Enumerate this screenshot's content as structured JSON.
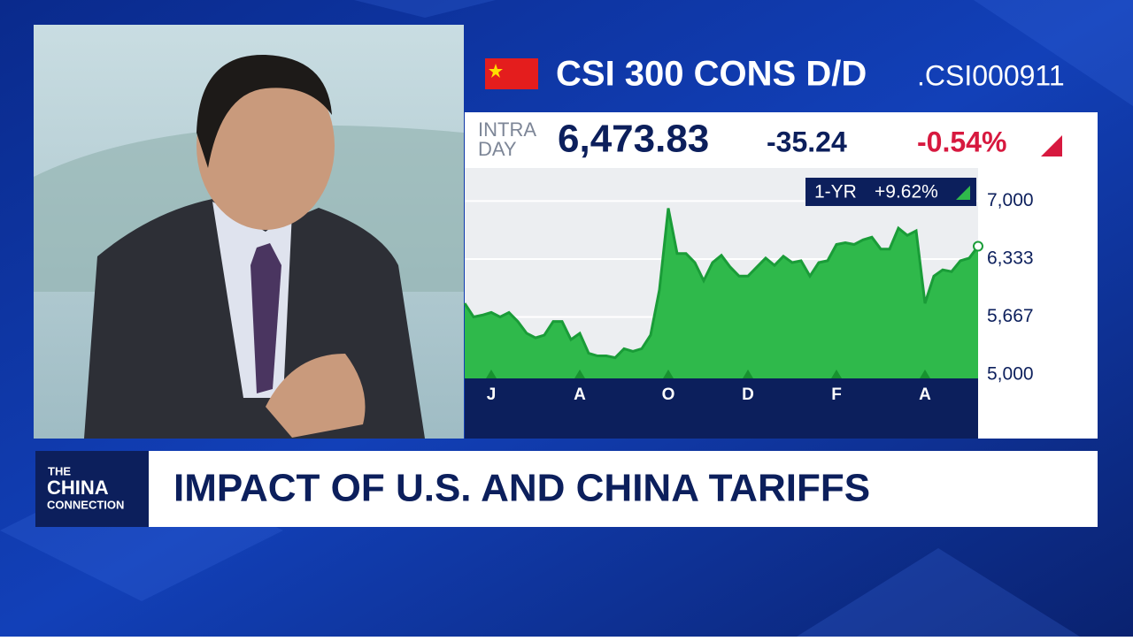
{
  "header": {
    "title": "CSI 300 CONS D/D",
    "ticker": ".CSI000911"
  },
  "quote": {
    "label": [
      "INTRA",
      "DAY"
    ],
    "price": "6,473.83",
    "change": "-35.24",
    "change_pct": "-0.54%"
  },
  "chart_data": {
    "type": "area",
    "badge_label": "1-YR",
    "badge_value": "+9.62%",
    "color": "#2fb94b",
    "values": [
      5823,
      5667,
      5688,
      5719,
      5667,
      5719,
      5615,
      5479,
      5427,
      5458,
      5615,
      5615,
      5406,
      5479,
      5250,
      5219,
      5219,
      5198,
      5302,
      5271,
      5302,
      5458,
      5979,
      6917,
      6396,
      6396,
      6292,
      6084,
      6292,
      6375,
      6240,
      6136,
      6136,
      6240,
      6344,
      6261,
      6365,
      6292,
      6313,
      6136,
      6292,
      6313,
      6500,
      6521,
      6500,
      6553,
      6584,
      6448,
      6448,
      6688,
      6605,
      6657,
      5823,
      6136,
      6209,
      6188,
      6313,
      6344,
      6480
    ],
    "xlim": [
      0,
      58
    ],
    "xticks": [
      {
        "value": 3,
        "label": "J"
      },
      {
        "value": 13,
        "label": "A"
      },
      {
        "value": 23,
        "label": "O"
      },
      {
        "value": 32,
        "label": "D"
      },
      {
        "value": 42,
        "label": "F"
      },
      {
        "value": 52,
        "label": "A"
      }
    ],
    "ylim": [
      4960,
      7380
    ],
    "yticks": [
      {
        "value": 7000,
        "label": "7,000"
      },
      {
        "value": 6333,
        "label": "6,333"
      },
      {
        "value": 5667,
        "label": "5,667"
      },
      {
        "value": 5000,
        "label": "5,000"
      }
    ],
    "grid": true
  },
  "lower_third": {
    "logo": [
      "THE",
      "CHINA",
      "CONNECTION"
    ],
    "headline": "IMPACT OF U.S. AND CHINA TARIFFS"
  }
}
